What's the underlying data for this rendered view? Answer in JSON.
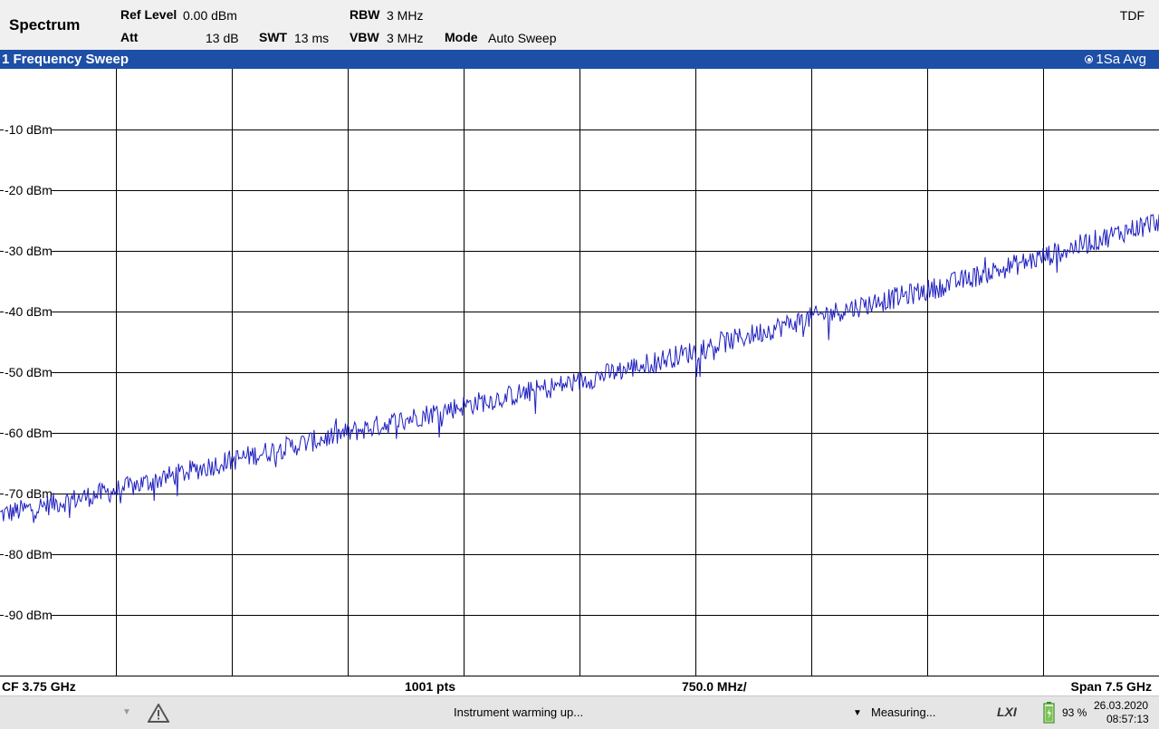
{
  "header": {
    "app_title": "Spectrum",
    "ref_level_label": "Ref Level",
    "ref_level_value": "0.00 dBm",
    "att_label": "Att",
    "att_value": "13 dB",
    "swt_label": "SWT",
    "swt_value": "13 ms",
    "rbw_label": "RBW",
    "rbw_value": "3 MHz",
    "vbw_label": "VBW",
    "vbw_value": "3 MHz",
    "mode_label": "Mode",
    "mode_value": "Auto Sweep",
    "tdf": "TDF"
  },
  "window": {
    "title": "1 Frequency Sweep",
    "trace_info": "1Sa Avg"
  },
  "bottom": {
    "cf": "CF 3.75 GHz",
    "points": "1001 pts",
    "div": "750.0 MHz/",
    "span": "Span 7.5 GHz"
  },
  "status": {
    "message": "Instrument warming up...",
    "measuring": "Measuring...",
    "lxi": "LXI",
    "battery": "93 %",
    "date": "26.03.2020",
    "time": "08:57:13"
  },
  "colors": {
    "trace": "#1f1fbf",
    "title_bar": "#1e4fa6"
  },
  "chart_data": {
    "type": "line",
    "title": "",
    "y_tick_labels": [
      "-10 dBm",
      "-20 dBm",
      "-30 dBm",
      "-40 dBm",
      "-50 dBm",
      "-60 dBm",
      "-70 dBm",
      "-80 dBm",
      "-90 dBm"
    ],
    "ylim": [
      -100,
      0
    ],
    "x_unit": "GHz",
    "xlim": [
      0,
      7.5
    ],
    "grid": true,
    "series": [
      {
        "x": [
          0,
          0.75,
          1.5,
          2.25,
          3.0,
          3.75,
          4.5,
          5.25,
          6.0,
          6.75,
          7.5
        ],
        "values": [
          -73.5,
          -69.5,
          -64.5,
          -60.0,
          -55.5,
          -51.5,
          -46.5,
          -41.0,
          -36.5,
          -31.0,
          -25.0
        ]
      }
    ]
  }
}
